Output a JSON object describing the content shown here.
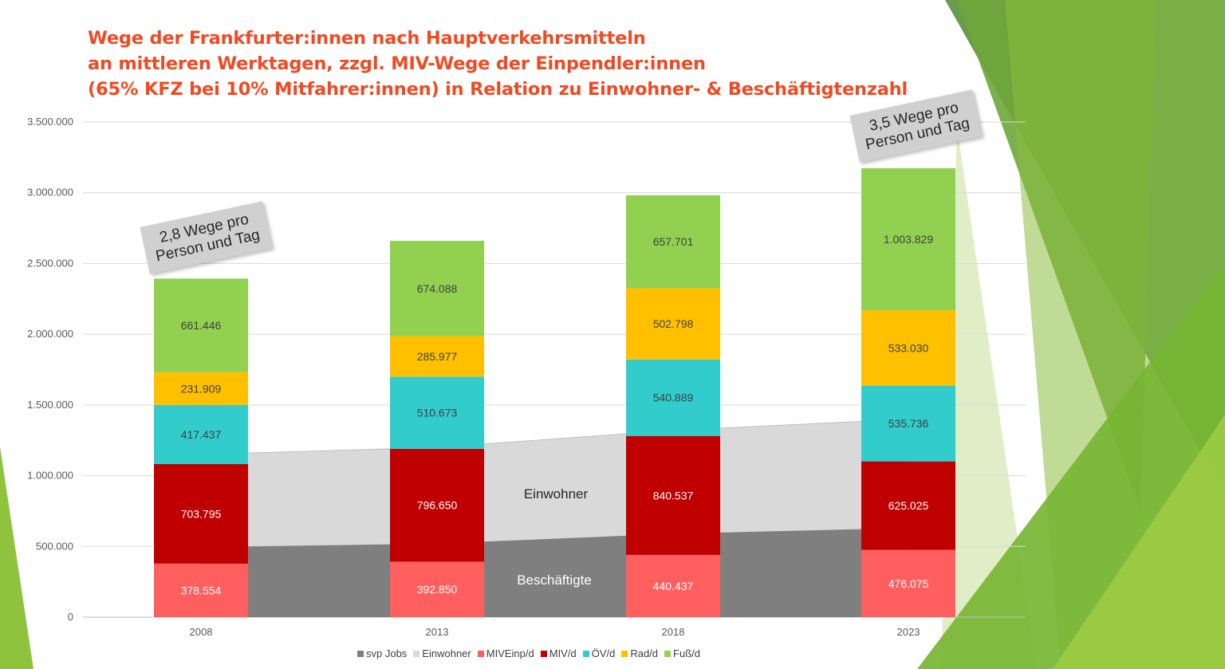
{
  "title_lines": [
    "Wege der Frankfurter:innen nach Hauptverkehrsmitteln",
    "an mittleren Werktagen, zzgl. MIV-Wege der Einpendler:innen",
    "(65% KFZ bei 10% Mitfahrer:innen) in Relation zu Einwohner- & Beschäftigtenzahl"
  ],
  "callouts": [
    {
      "line1": "2,8 Wege pro",
      "line2": "Person und Tag"
    },
    {
      "line1": "3,5 Wege pro",
      "line2": "Person und Tag"
    }
  ],
  "area_labels": {
    "einwohner": "Einwohner",
    "beschaeftigte": "Beschäftigte"
  },
  "legend": [
    {
      "label": "svp Jobs",
      "color": "#7f7f7f"
    },
    {
      "label": "Einwohner",
      "color": "#d9d9d9"
    },
    {
      "label": "MIVEinp/d",
      "color": "#ff5f5f"
    },
    {
      "label": "MIV/d",
      "color": "#c00000"
    },
    {
      "label": "ÖV/d",
      "color": "#33cccc"
    },
    {
      "label": "Rad/d",
      "color": "#ffc000"
    },
    {
      "label": "Fuß/d",
      "color": "#92d050"
    }
  ],
  "chart_data": {
    "type": "bar",
    "stacked": true,
    "categories": [
      "2008",
      "2013",
      "2018",
      "2023"
    ],
    "ylim": [
      0,
      3500000
    ],
    "yticks": [
      "0",
      "500.000",
      "1.000.000",
      "1.500.000",
      "2.000.000",
      "2.500.000",
      "3.000.000",
      "3.500.000"
    ],
    "grid": true,
    "legend_position": "bottom",
    "series": [
      {
        "name": "MIVEinp/d",
        "color": "#ff5f5f",
        "text_color": "#ffffff",
        "values": [
          378554,
          392850,
          440437,
          476075
        ],
        "labels": [
          "378.554",
          "392.850",
          "440.437",
          "476.075"
        ]
      },
      {
        "name": "MIV/d",
        "color": "#c00000",
        "text_color": "#ffffff",
        "values": [
          703795,
          796650,
          840537,
          625025
        ],
        "labels": [
          "703.795",
          "796.650",
          "840.537",
          "625.025"
        ]
      },
      {
        "name": "ÖV/d",
        "color": "#33cccc",
        "text_color": "#404040",
        "values": [
          417437,
          510673,
          540889,
          535736
        ],
        "labels": [
          "417.437",
          "510.673",
          "540.889",
          "535.736"
        ]
      },
      {
        "name": "Rad/d",
        "color": "#ffc000",
        "text_color": "#404040",
        "values": [
          231909,
          285977,
          502798,
          533030
        ],
        "labels": [
          "231.909",
          "285.977",
          "502.798",
          "533.030"
        ]
      },
      {
        "name": "Fuß/d",
        "color": "#92d050",
        "text_color": "#404040",
        "values": [
          661446,
          674088,
          657701,
          1003829
        ],
        "labels": [
          "661.446",
          "674.088",
          "657.701",
          "1.003.829"
        ]
      }
    ],
    "areas": [
      {
        "name": "Einwohner",
        "color": "#d9d9d9",
        "values": [
          1150000,
          1200000,
          1320000,
          1400000
        ]
      },
      {
        "name": "svp Jobs",
        "color": "#7f7f7f",
        "values": [
          495000,
          520000,
          590000,
          630000
        ]
      }
    ]
  }
}
